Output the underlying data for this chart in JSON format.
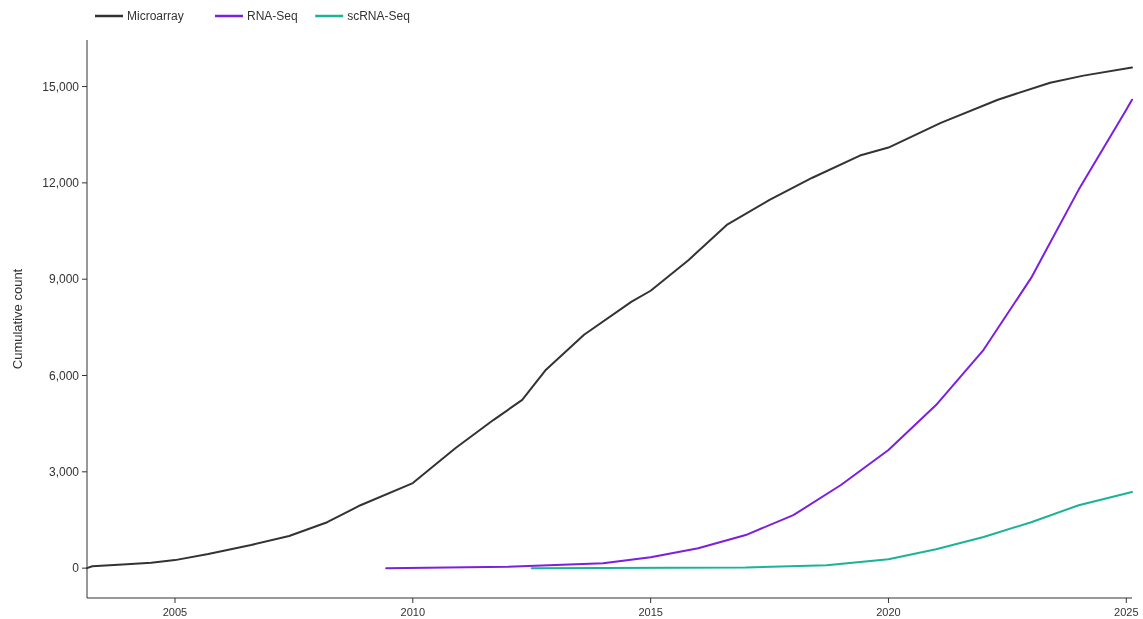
{
  "chart_data": {
    "type": "line",
    "ylabel": "Cumulative count",
    "xlim": [
      2003.15,
      2025.12
    ],
    "ylim": [
      -930,
      16450
    ],
    "xticks": [
      2005,
      2010,
      2015,
      2020,
      2025
    ],
    "yticks": [
      {
        "value": 0,
        "label": "0"
      },
      {
        "value": 3000,
        "label": "3,000"
      },
      {
        "value": 6000,
        "label": "6,000"
      },
      {
        "value": 9000,
        "label": "9,000"
      },
      {
        "value": 12000,
        "label": "12,000"
      },
      {
        "value": 15000,
        "label": "15,000"
      }
    ],
    "legend": "top left",
    "grid": false,
    "marker": "none",
    "line_style": "solid",
    "series": [
      {
        "name": "Microarray",
        "color": "#333333",
        "x": [
          2003.15,
          2003.26,
          2003.9,
          2004.5,
          2005,
          2005.7,
          2006.6,
          2007.4,
          2008.2,
          2008.9,
          2010,
          2010.9,
          2011.7,
          2012.3,
          2012.8,
          2013.6,
          2014.6,
          2015,
          2015.8,
          2016.6,
          2017.5,
          2018.4,
          2019.4,
          2020,
          2021.1,
          2022.3,
          2023.4,
          2024.1,
          2025.12
        ],
        "values": [
          0,
          60,
          110,
          170,
          250,
          440,
          720,
          1000,
          1430,
          1960,
          2650,
          3740,
          4620,
          5240,
          6180,
          7270,
          8300,
          8640,
          9600,
          10690,
          11470,
          12160,
          12850,
          13100,
          13870,
          14590,
          15120,
          15340,
          15590
        ]
      },
      {
        "name": "RNA-Seq",
        "color": "#7b1fe0",
        "x": [
          2009.44,
          2012,
          2014,
          2015,
          2016,
          2017,
          2018,
          2019,
          2020,
          2021,
          2022,
          2023,
          2024,
          2025,
          2025.12
        ],
        "values": [
          0,
          40,
          150,
          340,
          620,
          1030,
          1650,
          2590,
          3680,
          5080,
          6800,
          9040,
          11790,
          14280,
          14590
        ]
      },
      {
        "name": "scRNA-Seq",
        "color": "#1ab399",
        "x": [
          2012.5,
          2017,
          2018.7,
          2020,
          2021,
          2022,
          2023,
          2024,
          2025.12
        ],
        "values": [
          0,
          20,
          90,
          280,
          590,
          970,
          1430,
          1960,
          2370
        ]
      }
    ]
  }
}
